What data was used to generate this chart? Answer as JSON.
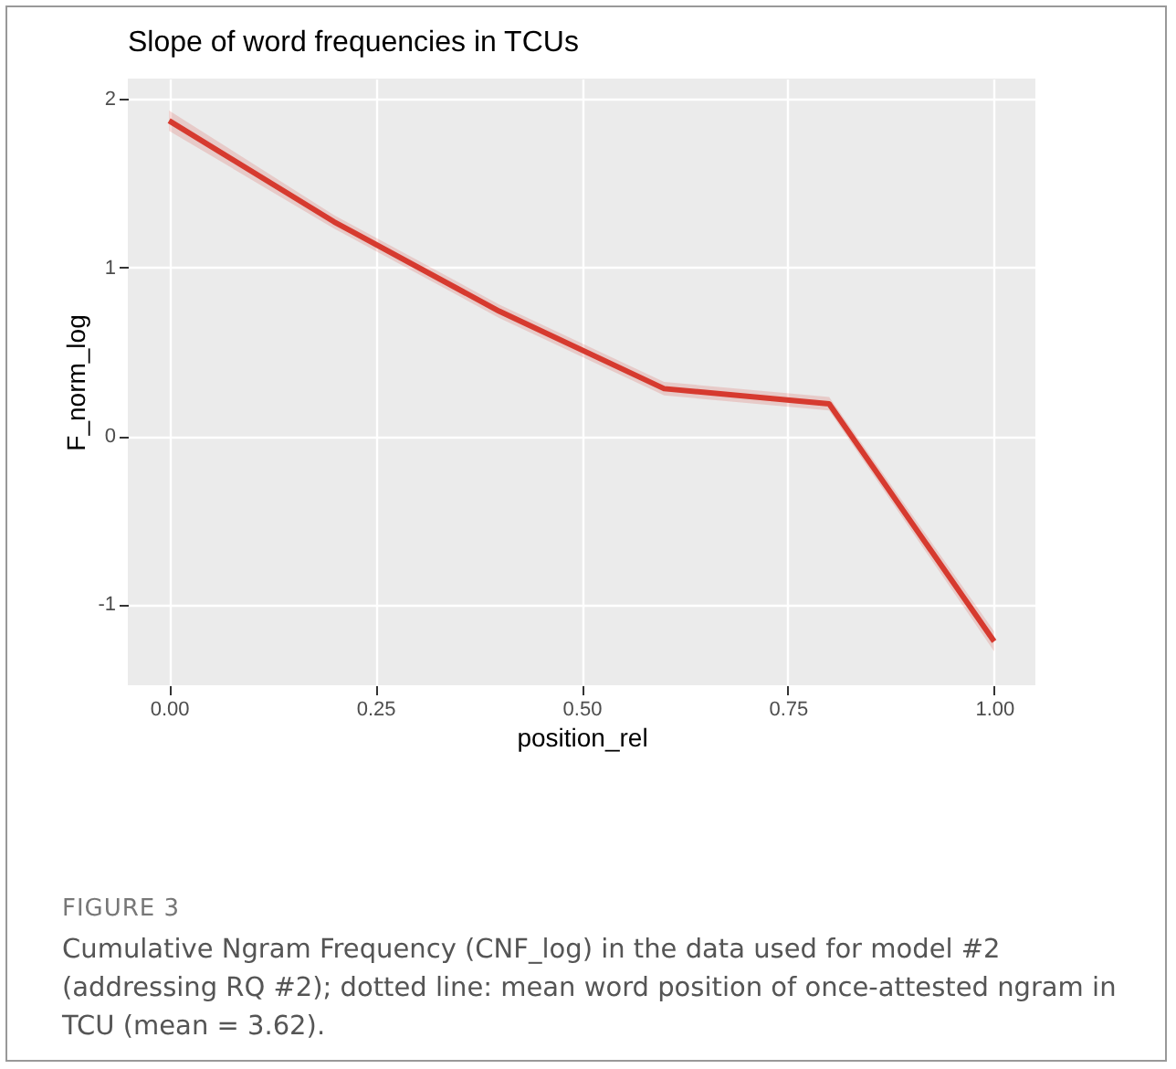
{
  "chart_data": {
    "type": "line",
    "title": "Slope of word frequencies in TCUs",
    "xlabel": "position_rel",
    "ylabel": "F_norm_log",
    "x": [
      0,
      0.2,
      0.4,
      0.6,
      0.8,
      1.0
    ],
    "series": [
      {
        "color": "#d63a2f",
        "values": [
          1.87,
          1.27,
          0.74,
          0.28,
          0.19,
          -1.22
        ],
        "lower": [
          1.81,
          1.23,
          0.7,
          0.24,
          0.15,
          -1.28
        ],
        "upper": [
          1.93,
          1.31,
          0.78,
          0.32,
          0.23,
          -1.16
        ]
      }
    ],
    "xlim": [
      -0.05,
      1.05
    ],
    "xticks": [
      {
        "value": 0,
        "label": "0.00"
      },
      {
        "value": 0.25,
        "label": "0.25"
      },
      {
        "value": 0.5,
        "label": "0.50"
      },
      {
        "value": 0.75,
        "label": "0.75"
      },
      {
        "value": 1,
        "label": "1.00"
      }
    ],
    "ylim": [
      -1.48,
      2.12
    ],
    "yticks": [
      -1,
      0,
      1,
      2
    ],
    "grid": true,
    "marker": "none",
    "line_style": "solid",
    "annotations": [
      "FIGURE 3",
      "Cumulative Ngram Frequency (CNF_log) in the data used for model #2 (addressing RQ #2); dotted line: mean word position of once-attested ngram in TCU (mean = 3.62)."
    ]
  }
}
